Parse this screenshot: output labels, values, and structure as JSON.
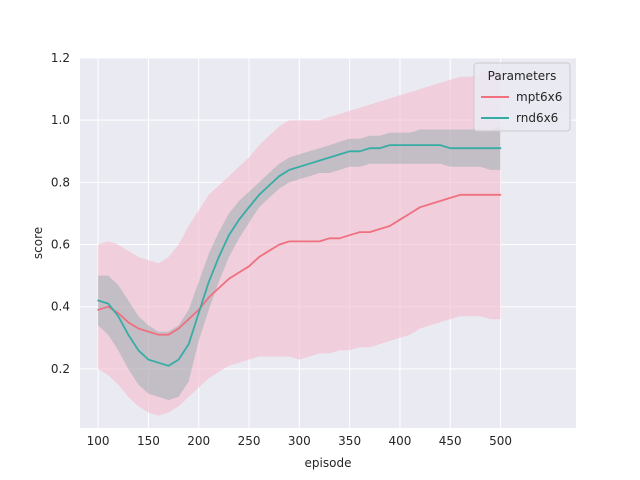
{
  "chart_data": {
    "type": "line",
    "xlabel": "episode",
    "ylabel": "score",
    "xlim": [
      82,
      575
    ],
    "ylim": [
      0.01,
      1.2
    ],
    "xticks": [
      100,
      150,
      200,
      250,
      300,
      350,
      400,
      450,
      500
    ],
    "yticks": [
      0.2,
      0.4,
      0.6,
      0.8,
      1.0,
      1.2
    ],
    "xtick_labels": [
      "100",
      "150",
      "200",
      "250",
      "300",
      "350",
      "400",
      "450",
      "500"
    ],
    "ytick_labels": [
      "0.2",
      "0.4",
      "0.6",
      "0.8",
      "1.0",
      "1.2"
    ],
    "grid": true,
    "legend": {
      "title": "Parameters",
      "placement": "top-right"
    },
    "series": [
      {
        "name": "mpt6x6",
        "color": "#f07080",
        "band_color": "#f4b6c8",
        "x": [
          100,
          110,
          120,
          130,
          140,
          150,
          160,
          170,
          180,
          190,
          200,
          210,
          220,
          230,
          240,
          250,
          260,
          270,
          280,
          290,
          300,
          310,
          320,
          330,
          340,
          350,
          360,
          370,
          380,
          390,
          400,
          410,
          420,
          430,
          440,
          450,
          460,
          470,
          480,
          490,
          500
        ],
        "y": [
          0.39,
          0.4,
          0.38,
          0.35,
          0.33,
          0.32,
          0.31,
          0.31,
          0.33,
          0.36,
          0.39,
          0.43,
          0.46,
          0.49,
          0.51,
          0.53,
          0.56,
          0.58,
          0.6,
          0.61,
          0.61,
          0.61,
          0.61,
          0.62,
          0.62,
          0.63,
          0.64,
          0.64,
          0.65,
          0.66,
          0.68,
          0.7,
          0.72,
          0.73,
          0.74,
          0.75,
          0.76,
          0.76,
          0.76,
          0.76,
          0.76
        ],
        "lower": [
          0.2,
          0.18,
          0.15,
          0.11,
          0.08,
          0.06,
          0.05,
          0.06,
          0.08,
          0.11,
          0.14,
          0.17,
          0.19,
          0.21,
          0.22,
          0.23,
          0.24,
          0.24,
          0.24,
          0.24,
          0.23,
          0.24,
          0.25,
          0.25,
          0.26,
          0.26,
          0.27,
          0.27,
          0.28,
          0.29,
          0.3,
          0.31,
          0.33,
          0.34,
          0.35,
          0.36,
          0.37,
          0.37,
          0.37,
          0.36,
          0.36
        ],
        "upper": [
          0.6,
          0.61,
          0.6,
          0.58,
          0.56,
          0.55,
          0.54,
          0.56,
          0.6,
          0.66,
          0.71,
          0.76,
          0.79,
          0.82,
          0.85,
          0.88,
          0.92,
          0.95,
          0.98,
          1.0,
          1.0,
          1.0,
          1.0,
          1.01,
          1.02,
          1.03,
          1.04,
          1.05,
          1.06,
          1.07,
          1.08,
          1.09,
          1.1,
          1.11,
          1.12,
          1.13,
          1.14,
          1.14,
          1.15,
          1.16,
          1.16
        ]
      },
      {
        "name": "rnd6x6",
        "color": "#36ada4",
        "band_color": "#3a8a84",
        "x": [
          100,
          110,
          120,
          130,
          140,
          150,
          160,
          170,
          180,
          190,
          200,
          210,
          220,
          230,
          240,
          250,
          260,
          270,
          280,
          290,
          300,
          310,
          320,
          330,
          340,
          350,
          360,
          370,
          380,
          390,
          400,
          410,
          420,
          430,
          440,
          450,
          460,
          470,
          480,
          490,
          500
        ],
        "y": [
          0.42,
          0.41,
          0.37,
          0.31,
          0.26,
          0.23,
          0.22,
          0.21,
          0.23,
          0.28,
          0.38,
          0.48,
          0.56,
          0.63,
          0.68,
          0.72,
          0.76,
          0.79,
          0.82,
          0.84,
          0.85,
          0.86,
          0.87,
          0.88,
          0.89,
          0.9,
          0.9,
          0.91,
          0.91,
          0.92,
          0.92,
          0.92,
          0.92,
          0.92,
          0.92,
          0.91,
          0.91,
          0.91,
          0.91,
          0.91,
          0.91
        ],
        "lower": [
          0.34,
          0.31,
          0.26,
          0.2,
          0.15,
          0.12,
          0.11,
          0.1,
          0.11,
          0.16,
          0.29,
          0.39,
          0.48,
          0.56,
          0.62,
          0.67,
          0.72,
          0.75,
          0.78,
          0.8,
          0.81,
          0.82,
          0.83,
          0.83,
          0.84,
          0.85,
          0.85,
          0.86,
          0.86,
          0.86,
          0.86,
          0.86,
          0.86,
          0.86,
          0.86,
          0.85,
          0.85,
          0.85,
          0.85,
          0.84,
          0.84
        ],
        "upper": [
          0.5,
          0.5,
          0.47,
          0.42,
          0.37,
          0.34,
          0.32,
          0.32,
          0.34,
          0.39,
          0.48,
          0.57,
          0.64,
          0.7,
          0.74,
          0.77,
          0.8,
          0.83,
          0.86,
          0.88,
          0.89,
          0.9,
          0.91,
          0.92,
          0.93,
          0.94,
          0.94,
          0.95,
          0.95,
          0.96,
          0.96,
          0.96,
          0.97,
          0.97,
          0.97,
          0.97,
          0.97,
          0.97,
          0.97,
          0.97,
          0.98
        ]
      }
    ]
  }
}
